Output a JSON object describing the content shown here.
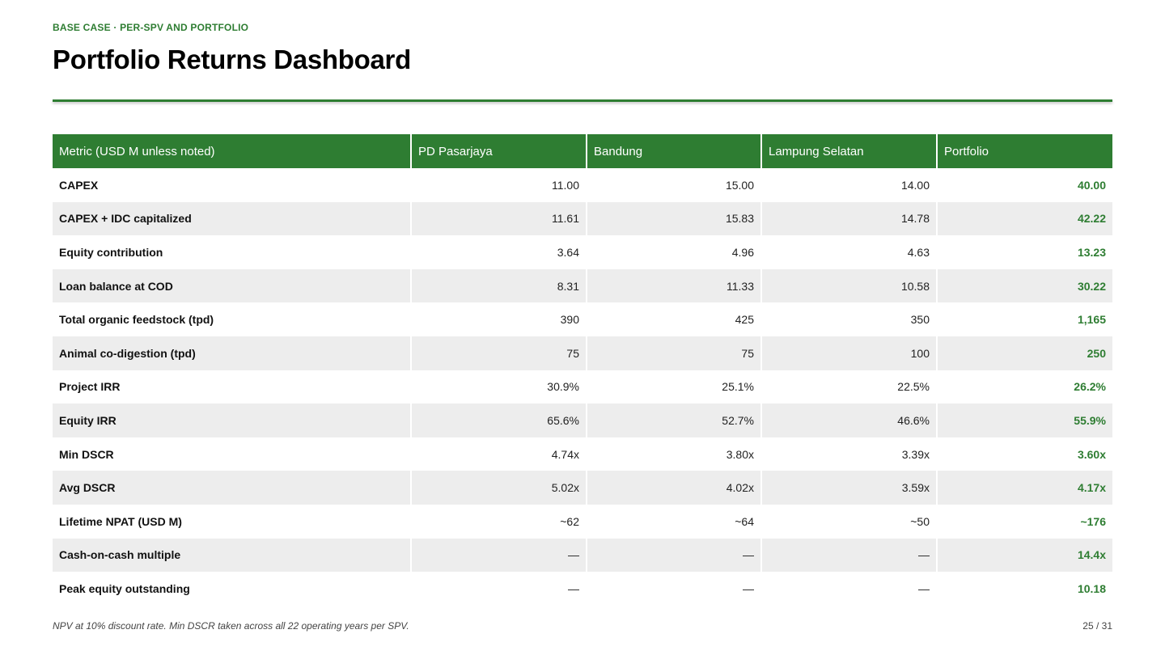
{
  "header": {
    "eyebrow": "BASE CASE · PER-SPV AND PORTFOLIO",
    "title": "Portfolio Returns Dashboard"
  },
  "table": {
    "columns": [
      "Metric (USD M unless noted)",
      "PD Pasarjaya",
      "Bandung",
      "Lampung Selatan",
      "Portfolio"
    ],
    "rows": [
      [
        "CAPEX",
        "11.00",
        "15.00",
        "14.00",
        "40.00"
      ],
      [
        "CAPEX + IDC capitalized",
        "11.61",
        "15.83",
        "14.78",
        "42.22"
      ],
      [
        "Equity contribution",
        "3.64",
        "4.96",
        "4.63",
        "13.23"
      ],
      [
        "Loan balance at COD",
        "8.31",
        "11.33",
        "10.58",
        "30.22"
      ],
      [
        "Total organic feedstock (tpd)",
        "390",
        "425",
        "350",
        "1,165"
      ],
      [
        "Animal co-digestion (tpd)",
        "75",
        "75",
        "100",
        "250"
      ],
      [
        "Project IRR",
        "30.9%",
        "25.1%",
        "22.5%",
        "26.2%"
      ],
      [
        "Equity IRR",
        "65.6%",
        "52.7%",
        "46.6%",
        "55.9%"
      ],
      [
        "Min DSCR",
        "4.74x",
        "3.80x",
        "3.39x",
        "3.60x"
      ],
      [
        "Avg DSCR",
        "5.02x",
        "4.02x",
        "3.59x",
        "4.17x"
      ],
      [
        "Lifetime NPAT (USD M)",
        "~62",
        "~64",
        "~50",
        "~176"
      ],
      [
        "Cash-on-cash multiple",
        "—",
        "—",
        "—",
        "14.4x"
      ],
      [
        "Peak equity outstanding",
        "—",
        "—",
        "—",
        "10.18"
      ]
    ]
  },
  "footer": {
    "note": "NPV at 10% discount rate. Min DSCR taken across all 22 operating years per SPV.",
    "page": "25 / 31"
  },
  "colors": {
    "accent": "#2e7d32",
    "stripe": "#ededed"
  }
}
